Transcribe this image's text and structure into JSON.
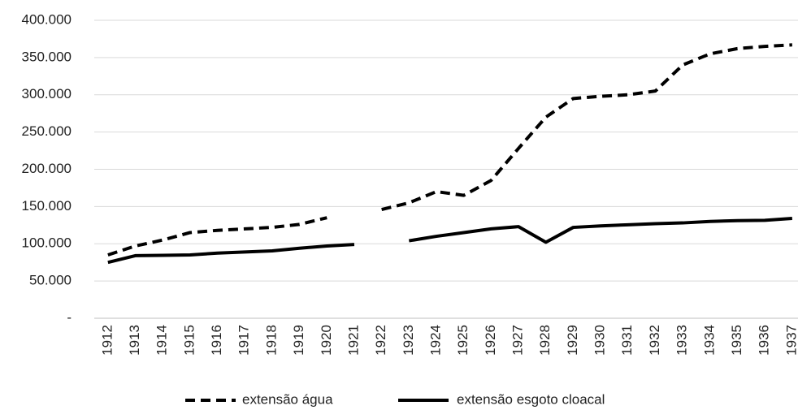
{
  "chart_data": {
    "type": "line",
    "categories": [
      "1912",
      "1913",
      "1914",
      "1915",
      "1916",
      "1917",
      "1918",
      "1919",
      "1920",
      "1921",
      "1922",
      "1923",
      "1924",
      "1925",
      "1926",
      "1927",
      "1928",
      "1929",
      "1930",
      "1931",
      "1932",
      "1933",
      "1934",
      "1935",
      "1936",
      "1937"
    ],
    "series": [
      {
        "name": "extensão água",
        "color": "#000000",
        "dash": "dashed",
        "values": [
          85000,
          97000,
          105000,
          115000,
          118000,
          120000,
          122000,
          126000,
          135000,
          null,
          146000,
          155000,
          170000,
          165000,
          185000,
          228000,
          270000,
          295000,
          298000,
          300000,
          305000,
          340000,
          355000,
          362000,
          365000,
          367000
        ]
      },
      {
        "name": "extensão esgoto cloacal",
        "color": "#000000",
        "dash": "solid",
        "values": [
          75000,
          84000,
          84500,
          85000,
          87500,
          89000,
          90500,
          94000,
          97000,
          99000,
          null,
          104000,
          110000,
          115000,
          120000,
          123000,
          102000,
          122000,
          124000,
          125500,
          127000,
          128000,
          130000,
          131000,
          131500,
          134000
        ]
      }
    ],
    "ylim": [
      0,
      400000
    ],
    "yticks": [
      {
        "value": 0,
        "label": "-"
      },
      {
        "value": 50000,
        "label": "50.000"
      },
      {
        "value": 100000,
        "label": "100.000"
      },
      {
        "value": 150000,
        "label": "150.000"
      },
      {
        "value": 200000,
        "label": "200.000"
      },
      {
        "value": 250000,
        "label": "250.000"
      },
      {
        "value": 300000,
        "label": "300.000"
      },
      {
        "value": 350000,
        "label": "350.000"
      },
      {
        "value": 400000,
        "label": "400.000"
      }
    ],
    "grid": true,
    "legend": "bottom"
  }
}
